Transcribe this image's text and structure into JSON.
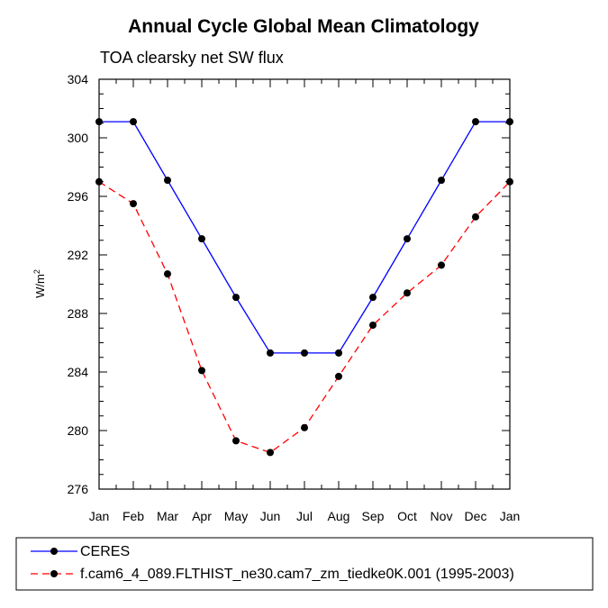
{
  "chart_data": {
    "type": "line",
    "title": "Annual Cycle Global Mean Climatology",
    "subtitle": "TOA clearsky net SW flux",
    "ylabel": "W/m",
    "ylabel_superscript": "2",
    "xlabel": "",
    "categories": [
      "Jan",
      "Feb",
      "Mar",
      "Apr",
      "May",
      "Jun",
      "Jul",
      "Aug",
      "Sep",
      "Oct",
      "Nov",
      "Dec",
      "Jan"
    ],
    "ylim": [
      276,
      304
    ],
    "yticks": [
      276,
      280,
      284,
      288,
      292,
      296,
      300,
      304
    ],
    "legend_position": "bottom",
    "series": [
      {
        "name": "CERES",
        "color": "#0000ff",
        "dash": "solid",
        "values": [
          301.1,
          301.1,
          297.1,
          293.1,
          289.1,
          285.3,
          285.3,
          285.3,
          289.1,
          293.1,
          297.1,
          301.1,
          301.1
        ]
      },
      {
        "name": "f.cam6_4_089.FLTHIST_ne30.cam7_zm_tiedke0K.001 (1995-2003)",
        "color": "#ff0000",
        "dash": "dashed",
        "values": [
          297.0,
          295.5,
          290.7,
          284.1,
          279.3,
          278.5,
          280.2,
          283.7,
          287.2,
          289.4,
          291.3,
          294.6,
          297.0
        ]
      }
    ]
  }
}
